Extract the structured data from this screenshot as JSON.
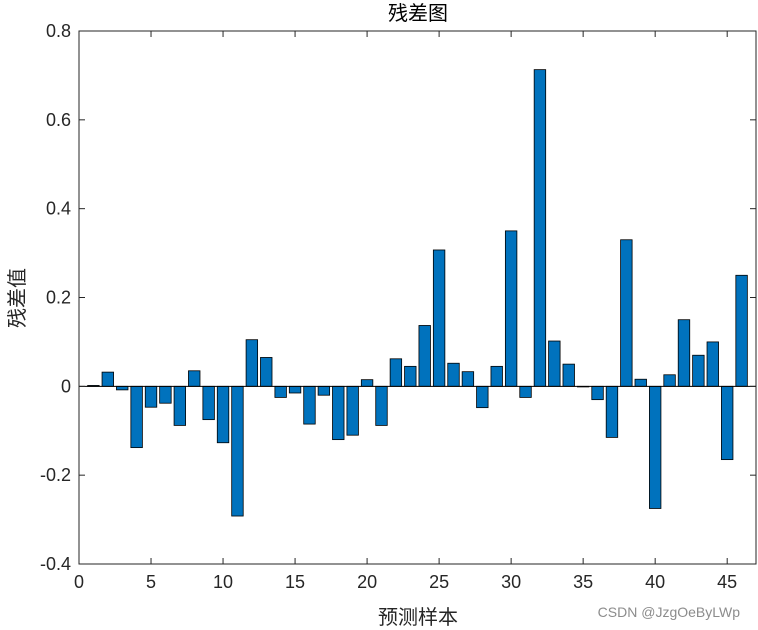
{
  "watermark": "CSDN @JzgOeByLWp",
  "chart_data": {
    "type": "bar",
    "title": "残差图",
    "xlabel": "预测样本",
    "ylabel": "残差值",
    "x": [
      1,
      2,
      3,
      4,
      5,
      6,
      7,
      8,
      9,
      10,
      11,
      12,
      13,
      14,
      15,
      16,
      17,
      18,
      19,
      20,
      21,
      22,
      23,
      24,
      25,
      26,
      27,
      28,
      29,
      30,
      31,
      32,
      33,
      34,
      35,
      36,
      37,
      38,
      39,
      40,
      41,
      42,
      43,
      44,
      45,
      46
    ],
    "values": [
      0.002,
      0.032,
      -0.008,
      -0.138,
      -0.047,
      -0.038,
      -0.088,
      0.035,
      -0.075,
      -0.127,
      -0.292,
      0.105,
      0.065,
      -0.025,
      -0.015,
      -0.085,
      -0.02,
      -0.12,
      -0.11,
      0.015,
      -0.088,
      0.062,
      0.045,
      0.137,
      0.307,
      0.052,
      0.033,
      -0.048,
      0.045,
      0.35,
      -0.025,
      0.713,
      0.102,
      0.05,
      0.0,
      -0.03,
      -0.115,
      0.33,
      0.016,
      -0.275,
      0.026,
      0.15,
      0.07,
      0.1,
      -0.165,
      0.25
    ],
    "xlim": [
      0,
      47
    ],
    "ylim": [
      -0.4,
      0.8
    ],
    "xticks": [
      0,
      5,
      10,
      15,
      20,
      25,
      30,
      35,
      40,
      45
    ],
    "xtick_labels": [
      "0",
      "5",
      "10",
      "15",
      "20",
      "25",
      "30",
      "35",
      "40",
      "45"
    ],
    "yticks": [
      -0.4,
      -0.2,
      0,
      0.2,
      0.4,
      0.6,
      0.8
    ],
    "ytick_labels": [
      "-0.4",
      "-0.2",
      "0",
      "0.2",
      "0.4",
      "0.6",
      "0.8"
    ],
    "grid": false,
    "bar_color": "#0072BD",
    "bar_edge_color": "#000000"
  }
}
